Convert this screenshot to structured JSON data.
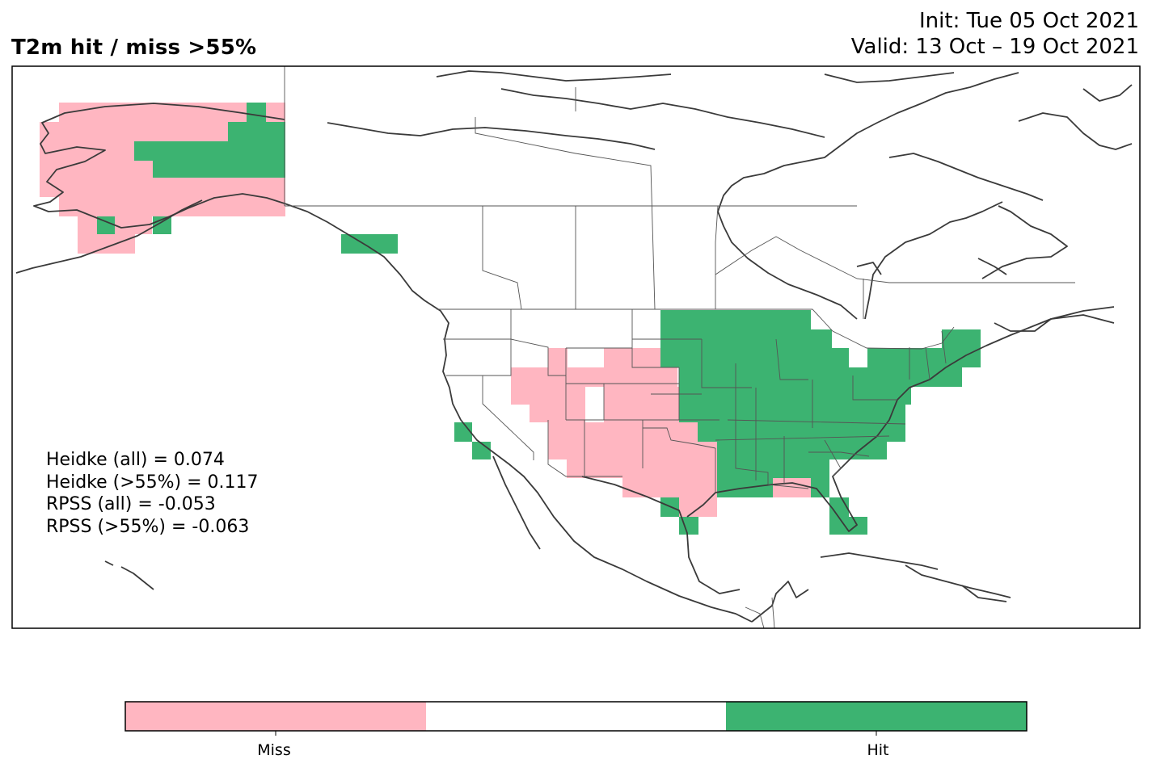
{
  "title": "T2m hit / miss  >55%",
  "init_text": "Init: Tue 05 Oct 2021",
  "valid_text": "Valid: 13 Oct – 19 Oct 2021",
  "stats": [
    {
      "text": "Heidke (all) = 0.074"
    },
    {
      "text": "Heidke (>55%) = 0.117"
    },
    {
      "text": "RPSS (all) = -0.053"
    },
    {
      "text": "RPSS (>55%) = -0.063"
    }
  ],
  "colorbar": {
    "categories": [
      "Miss",
      "",
      "Hit"
    ],
    "colors": [
      "#ffb6c1",
      "#ffffff",
      "#3cb371"
    ]
  },
  "colors": {
    "miss": "#ffb6c1",
    "hit": "#3cb371",
    "coast": "#3a3a3a",
    "border": "#555555"
  }
}
